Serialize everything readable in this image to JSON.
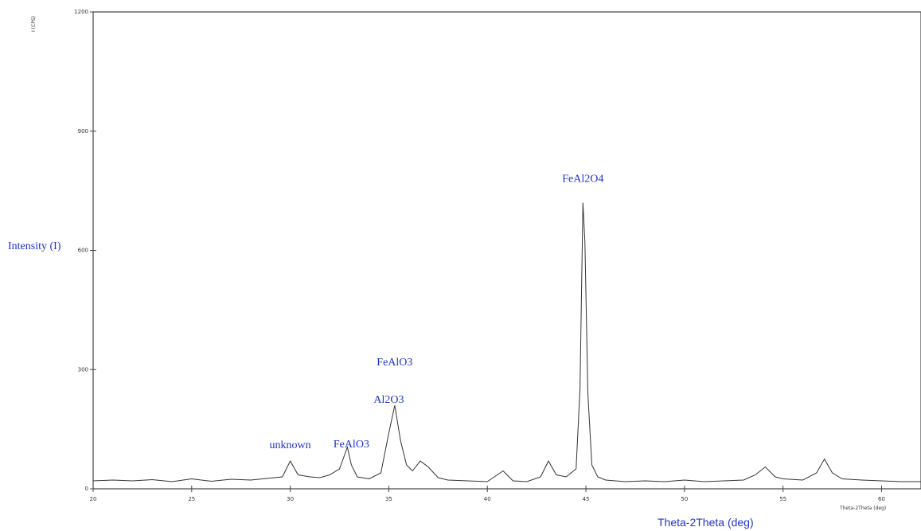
{
  "chart_data": {
    "type": "line",
    "title": "",
    "xlabel": "Theta-2Theta (deg)",
    "xlabel_small": "Theta-2Theta (deg)",
    "ylabel": "Intensity (I)",
    "ylabel_small": "I (CPS)",
    "xlim": [
      20,
      62
    ],
    "ylim": [
      0,
      1200
    ],
    "x_ticks": [
      20,
      25,
      30,
      35,
      40,
      45,
      50,
      55,
      60
    ],
    "y_ticks": [
      0,
      300,
      600,
      900,
      1200
    ],
    "grid": false,
    "series": [
      {
        "x": [
          20,
          21,
          22,
          23,
          24,
          25,
          26,
          27,
          28,
          29,
          29.6,
          30.0,
          30.4,
          31,
          31.5,
          32,
          32.5,
          32.9,
          33.1,
          33.4,
          34,
          34.6,
          35.0,
          35.3,
          35.6,
          35.9,
          36.2,
          36.6,
          37,
          37.5,
          38,
          39,
          40,
          40.8,
          41,
          41.3,
          42,
          42.7,
          43.1,
          43.5,
          44,
          44.5,
          44.7,
          44.85,
          44.95,
          45.1,
          45.3,
          45.6,
          46,
          47,
          48,
          49,
          50,
          51,
          52,
          53,
          53.6,
          54.1,
          54.6,
          55,
          56,
          56.7,
          57.1,
          57.5,
          58,
          59,
          60,
          61,
          62
        ],
        "y": [
          20,
          22,
          20,
          23,
          18,
          25,
          19,
          24,
          22,
          27,
          30,
          70,
          35,
          30,
          28,
          35,
          50,
          105,
          60,
          30,
          25,
          40,
          140,
          210,
          120,
          60,
          45,
          70,
          55,
          28,
          22,
          20,
          18,
          45,
          35,
          20,
          18,
          30,
          70,
          35,
          30,
          50,
          250,
          720,
          620,
          240,
          60,
          30,
          22,
          18,
          20,
          18,
          22,
          18,
          20,
          22,
          35,
          55,
          30,
          25,
          22,
          40,
          75,
          40,
          25,
          22,
          20,
          18,
          18
        ]
      }
    ],
    "annotations": [
      {
        "text": "unknown",
        "x": 30.0
      },
      {
        "text": "FeAlO3",
        "x": 33.1
      },
      {
        "text": "Al2O3",
        "x": 35.0
      },
      {
        "text": "FeAlO3",
        "x": 35.3
      },
      {
        "text": "FeAl2O4",
        "x": 44.85
      }
    ],
    "colors": {
      "line": "#333333",
      "annotation": "#2233cc"
    }
  }
}
